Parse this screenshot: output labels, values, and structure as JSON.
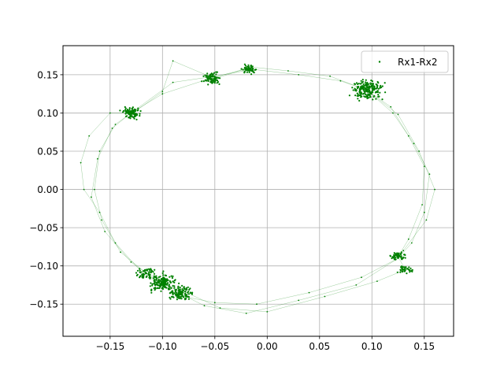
{
  "chart_data": {
    "type": "scatter",
    "title": "",
    "xlabel": "",
    "ylabel": "",
    "xlim": [
      -0.195,
      0.178
    ],
    "ylim": [
      -0.192,
      0.188
    ],
    "grid": true,
    "legend_position": "top-right",
    "x_ticks": [
      -0.15,
      -0.1,
      -0.05,
      0.0,
      0.05,
      0.1,
      0.15
    ],
    "x_tick_labels": [
      "−0.15",
      "−0.10",
      "−0.05",
      "0.00",
      "0.05",
      "0.10",
      "0.15"
    ],
    "y_ticks": [
      -0.15,
      -0.1,
      -0.05,
      0.0,
      0.05,
      0.1,
      0.15
    ],
    "y_tick_labels": [
      "−0.15",
      "−0.10",
      "−0.05",
      "0.00",
      "0.05",
      "0.10",
      "0.15"
    ],
    "series": [
      {
        "name": "Rx1-Rx2",
        "color": "#008000",
        "marker": "dot",
        "connected": true,
        "points": [
          [
            0.095,
            0.13
          ],
          [
            0.12,
            0.1
          ],
          [
            0.14,
            0.06
          ],
          [
            0.155,
            0.02
          ],
          [
            0.15,
            -0.03
          ],
          [
            0.138,
            -0.07
          ],
          [
            0.125,
            -0.09
          ],
          [
            0.09,
            -0.115
          ],
          [
            0.04,
            -0.135
          ],
          [
            -0.01,
            -0.15
          ],
          [
            -0.05,
            -0.148
          ],
          [
            -0.08,
            -0.14
          ],
          [
            -0.1,
            -0.125
          ],
          [
            -0.13,
            -0.095
          ],
          [
            -0.155,
            -0.055
          ],
          [
            -0.168,
            -0.01
          ],
          [
            -0.162,
            0.04
          ],
          [
            -0.148,
            0.08
          ],
          [
            -0.13,
            0.1
          ],
          [
            -0.1,
            0.125
          ],
          [
            -0.055,
            0.145
          ],
          [
            -0.02,
            0.158
          ],
          [
            0.03,
            0.15
          ],
          [
            0.07,
            0.142
          ],
          [
            0.095,
            0.13
          ],
          [
            0.118,
            0.108
          ],
          [
            0.135,
            0.07
          ],
          [
            0.15,
            0.03
          ],
          [
            0.148,
            -0.02
          ],
          [
            0.135,
            -0.065
          ],
          [
            0.125,
            -0.088
          ],
          [
            0.132,
            -0.105
          ],
          [
            0.105,
            -0.12
          ],
          [
            0.055,
            -0.14
          ],
          [
            0.0,
            -0.16
          ],
          [
            -0.045,
            -0.155
          ],
          [
            -0.085,
            -0.13
          ],
          [
            -0.105,
            -0.122
          ],
          [
            -0.12,
            -0.108
          ],
          [
            -0.145,
            -0.07
          ],
          [
            -0.16,
            -0.03
          ],
          [
            -0.175,
            0.0
          ],
          [
            -0.178,
            0.035
          ],
          [
            -0.17,
            0.07
          ],
          [
            -0.15,
            0.1
          ],
          [
            -0.128,
            0.1
          ],
          [
            -0.1,
            0.128
          ],
          [
            -0.09,
            0.168
          ],
          [
            -0.05,
            0.145
          ],
          [
            -0.015,
            0.16
          ],
          [
            0.02,
            0.155
          ],
          [
            0.06,
            0.148
          ],
          [
            0.095,
            0.13
          ],
          [
            0.125,
            0.098
          ],
          [
            0.145,
            0.05
          ],
          [
            0.16,
            0.0
          ],
          [
            0.152,
            -0.04
          ],
          [
            0.13,
            -0.08
          ],
          [
            0.125,
            -0.09
          ],
          [
            0.085,
            -0.125
          ],
          [
            0.03,
            -0.145
          ],
          [
            -0.02,
            -0.162
          ],
          [
            -0.06,
            -0.152
          ],
          [
            -0.085,
            -0.135
          ],
          [
            -0.098,
            -0.12
          ],
          [
            -0.115,
            -0.11
          ],
          [
            -0.14,
            -0.082
          ],
          [
            -0.158,
            -0.04
          ],
          [
            -0.165,
            0.0
          ],
          [
            -0.16,
            0.05
          ],
          [
            -0.145,
            0.085
          ],
          [
            -0.13,
            0.1
          ],
          [
            -0.09,
            0.14
          ],
          [
            -0.05,
            0.148
          ],
          [
            -0.018,
            0.156
          ]
        ],
        "clusters": [
          {
            "x": -0.13,
            "y": 0.1,
            "spread": 0.004,
            "count": 90
          },
          {
            "x": -0.052,
            "y": 0.145,
            "spread": 0.004,
            "count": 80
          },
          {
            "x": -0.017,
            "y": 0.157,
            "spread": 0.003,
            "count": 60
          },
          {
            "x": 0.095,
            "y": 0.13,
            "spread": 0.007,
            "count": 200
          },
          {
            "x": 0.125,
            "y": -0.087,
            "spread": 0.003,
            "count": 60
          },
          {
            "x": 0.132,
            "y": -0.105,
            "spread": 0.003,
            "count": 40
          },
          {
            "x": -0.115,
            "y": -0.11,
            "spread": 0.005,
            "count": 60
          },
          {
            "x": -0.1,
            "y": -0.122,
            "spread": 0.006,
            "count": 180
          },
          {
            "x": -0.082,
            "y": -0.135,
            "spread": 0.005,
            "count": 120
          }
        ]
      }
    ]
  }
}
